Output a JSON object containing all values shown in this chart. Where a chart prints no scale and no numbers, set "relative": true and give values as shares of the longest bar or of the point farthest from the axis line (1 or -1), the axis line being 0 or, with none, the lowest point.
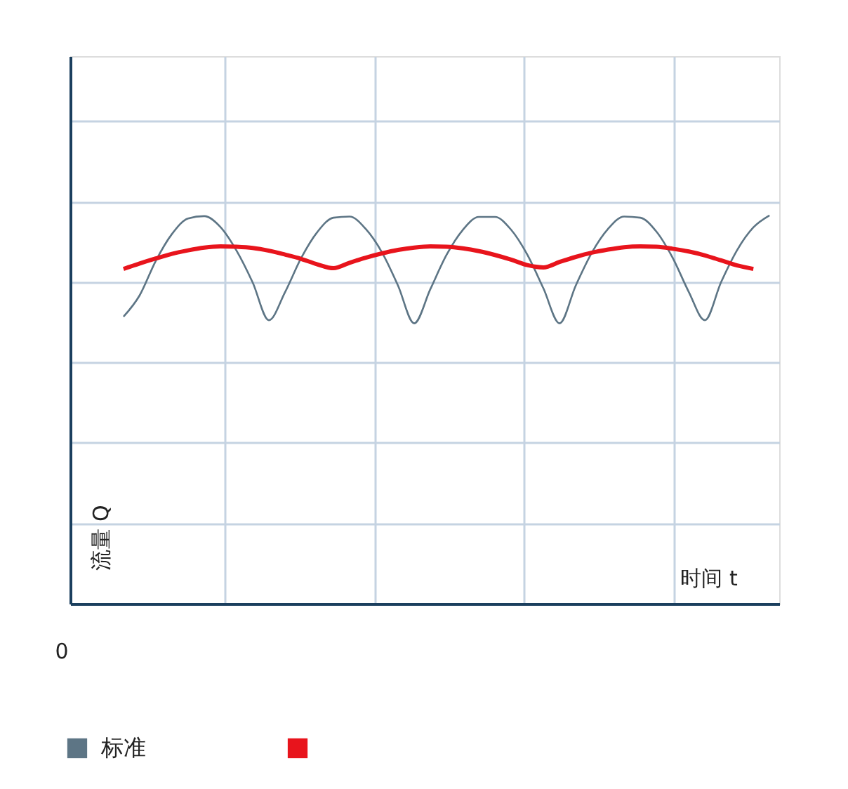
{
  "chart_data": {
    "type": "line",
    "relative": true,
    "xlabel": "时间 t",
    "ylabel": "流量 Q",
    "annotations": [
      "0"
    ],
    "grid": true,
    "legend": "bottom",
    "marker": "none",
    "line_style": "solid",
    "categories": [
      null,
      null,
      null,
      null,
      null,
      null,
      null,
      null,
      null,
      null,
      null,
      null,
      null,
      null,
      null,
      null,
      null,
      null,
      null,
      null,
      null,
      null,
      null,
      null,
      null,
      null,
      null,
      null,
      null,
      null,
      null,
      null,
      null,
      null,
      null,
      null,
      null,
      null,
      null,
      null,
      null
    ],
    "series": [
      {
        "name": "标准",
        "color": "#5d7585",
        "values": [
          0.739,
          0.794,
          0.883,
          0.952,
          0.992,
          0.998,
          0.97,
          0.909,
          0.827,
          0.73,
          0.802,
          0.89,
          0.957,
          0.994,
          0.997,
          0.965,
          0.905,
          0.819,
          0.722,
          0.81,
          0.898,
          0.962,
          0.996,
          0.996,
          0.963,
          0.899,
          0.812,
          0.722,
          0.819,
          0.904,
          0.965,
          0.997,
          0.994,
          0.958,
          0.891,
          0.803,
          0.73,
          0.828,
          0.911,
          0.969,
          1.0
        ]
      },
      {
        "color": "#e8141c",
        "values": [
          0.862,
          0.876,
          0.889,
          0.901,
          0.91,
          0.917,
          0.92,
          0.919,
          0.916,
          0.909,
          0.899,
          0.888,
          0.874,
          0.864,
          0.878,
          0.891,
          0.902,
          0.911,
          0.917,
          0.92,
          0.919,
          0.915,
          0.908,
          0.898,
          0.886,
          0.872,
          0.866,
          0.88,
          0.893,
          0.904,
          0.912,
          0.918,
          0.92,
          0.919,
          0.914,
          0.907,
          0.897,
          0.884,
          0.871,
          0.862,
          null
        ]
      }
    ]
  }
}
